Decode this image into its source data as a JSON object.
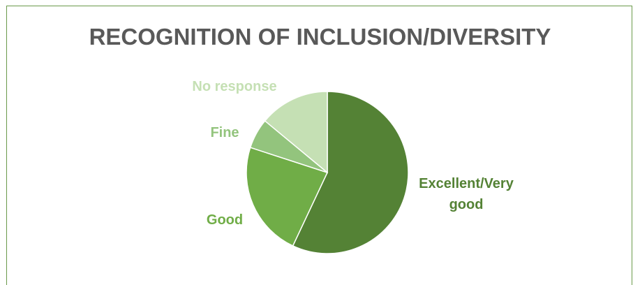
{
  "chart_data": {
    "type": "pie",
    "title": "RECOGNITION OF INCLUSION/DIVERSITY",
    "categories": [
      "Excellent/Very good",
      "Good",
      "Fine",
      "No response"
    ],
    "values": [
      57,
      23,
      6,
      14
    ],
    "label_lines": [
      [
        "Excellent/Very",
        "good"
      ],
      [
        "Good"
      ],
      [
        "Fine"
      ],
      [
        "No response"
      ]
    ],
    "colors": [
      "#548235",
      "#70ad47",
      "#93c47d",
      "#c5e0b4"
    ],
    "label_colors": [
      "#548235",
      "#70ad47",
      "#93c47d",
      "#c5e0b4"
    ],
    "start": "12 o'clock",
    "direction": "clockwise",
    "legend": "none"
  }
}
